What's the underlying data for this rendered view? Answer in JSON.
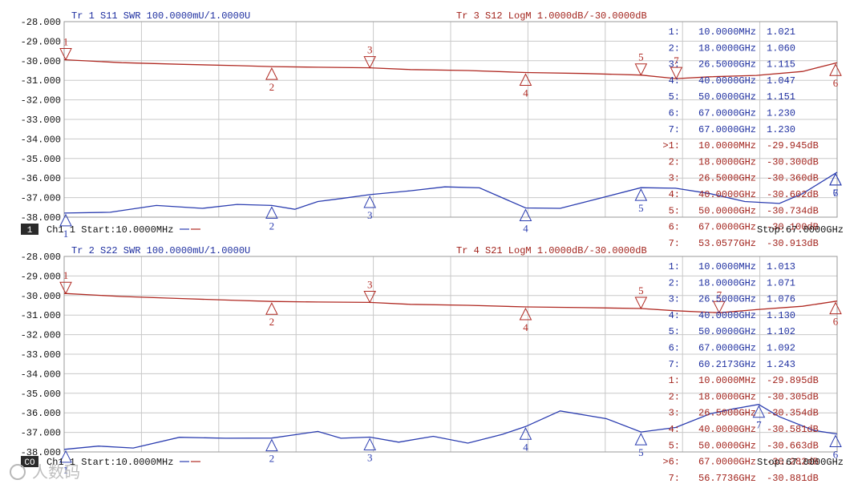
{
  "colors": {
    "trace_blue": "#2b3db0",
    "trace_red": "#b02a23",
    "grid": "#c8c8c8",
    "text_blue": "#1e2fa0",
    "text_red": "#a2231c"
  },
  "panels": [
    {
      "y_tick_labels": [
        "-28.000",
        "-29.000",
        "-30.000",
        "-31.000",
        "-32.000",
        "-33.000",
        "-34.000",
        "-35.000",
        "-36.000",
        "-37.000",
        "-38.000"
      ],
      "left_title": "Tr 1  S11 SWR 100.0000mU/1.0000U",
      "right_title": "Tr 3  S12 LogM 1.0000dB/-30.0000dB",
      "footer_badge": "1",
      "footer_left": "Ch1 1 Start:10.0000MHz",
      "footer_right": "Stop:67.0000GHz",
      "marker_table": [
        {
          "id": "1:",
          "freq": "10.0000MHz",
          "val": "1.021"
        },
        {
          "id": "2:",
          "freq": "18.0000GHz",
          "val": "1.060"
        },
        {
          "id": "3:",
          "freq": "26.5000GHz",
          "val": "1.115"
        },
        {
          "id": "4:",
          "freq": "40.0000GHz",
          "val": "1.047"
        },
        {
          "id": "5:",
          "freq": "50.0000GHz",
          "val": "1.151"
        },
        {
          "id": "6:",
          "freq": "67.0000GHz",
          "val": "1.230"
        },
        {
          "id": "7:",
          "freq": "67.0000GHz",
          "val": "1.230"
        },
        {
          "id": ">1:",
          "freq": "10.0000MHz",
          "val": "-29.945dB"
        },
        {
          "id": "2:",
          "freq": "18.0000GHz",
          "val": "-30.300dB"
        },
        {
          "id": "3:",
          "freq": "26.5000GHz",
          "val": "-30.360dB"
        },
        {
          "id": "4:",
          "freq": "40.0000GHz",
          "val": "-30.602dB"
        },
        {
          "id": "5:",
          "freq": "50.0000GHz",
          "val": "-30.734dB"
        },
        {
          "id": "6:",
          "freq": "67.0000GHz",
          "val": "-30.100dB"
        },
        {
          "id": "7:",
          "freq": "53.0577GHz",
          "val": "-30.913dB"
        }
      ]
    },
    {
      "y_tick_labels": [
        "-28.000",
        "-29.000",
        "-30.000",
        "-31.000",
        "-32.000",
        "-33.000",
        "-34.000",
        "-35.000",
        "-36.000",
        "-37.000",
        "-38.000"
      ],
      "left_title": "Tr 2  S22 SWR 100.0000mU/1.0000U",
      "right_title": "Tr 4  S21 LogM 1.0000dB/-30.0000dB",
      "footer_badge": "CO",
      "footer_left": "Ch1 1 Start:10.0000MHz",
      "footer_right": "Stop:67.0000GHz",
      "marker_table": [
        {
          "id": "1:",
          "freq": "10.0000MHz",
          "val": "1.013"
        },
        {
          "id": "2:",
          "freq": "18.0000GHz",
          "val": "1.071"
        },
        {
          "id": "3:",
          "freq": "26.5000GHz",
          "val": "1.076"
        },
        {
          "id": "4:",
          "freq": "40.0000GHz",
          "val": "1.130"
        },
        {
          "id": "5:",
          "freq": "50.0000GHz",
          "val": "1.102"
        },
        {
          "id": "6:",
          "freq": "67.0000GHz",
          "val": "1.092"
        },
        {
          "id": "7:",
          "freq": "60.2173GHz",
          "val": "1.243"
        },
        {
          "id": "1:",
          "freq": "10.0000MHz",
          "val": "-29.895dB"
        },
        {
          "id": "2:",
          "freq": "18.0000GHz",
          "val": "-30.305dB"
        },
        {
          "id": "3:",
          "freq": "26.5000GHz",
          "val": "-30.354dB"
        },
        {
          "id": "4:",
          "freq": "40.0000GHz",
          "val": "-30.581dB"
        },
        {
          "id": "5:",
          "freq": "50.0000GHz",
          "val": "-30.663dB"
        },
        {
          "id": ">6:",
          "freq": "67.0000GHz",
          "val": "-30.282dB"
        },
        {
          "id": "7:",
          "freq": "56.7736GHz",
          "val": "-30.881dB"
        }
      ]
    }
  ],
  "watermark_text": "人数码",
  "chart_data": [
    {
      "type": "line",
      "x_unit": "GHz",
      "xlim": [
        0.01,
        67
      ],
      "ylim": [
        -38,
        -28
      ],
      "grid": true,
      "series": [
        {
          "name": "Tr 1  S11 SWR 100.0000mU/1.0000U",
          "color": "#2b3db0",
          "mapping": "swr",
          "x": [
            0.01,
            4,
            8,
            12,
            15,
            18,
            20,
            22,
            24,
            26.5,
            30,
            33,
            36,
            40,
            43,
            46,
            50,
            53,
            56,
            59,
            62,
            64,
            67
          ],
          "y": [
            1.021,
            1.025,
            1.06,
            1.045,
            1.065,
            1.06,
            1.04,
            1.08,
            1.095,
            1.115,
            1.135,
            1.155,
            1.15,
            1.047,
            1.045,
            1.09,
            1.151,
            1.148,
            1.12,
            1.08,
            1.07,
            1.12,
            1.23
          ]
        },
        {
          "name": "Tr 3  S12 LogM 1.0000dB/-30.0000dB",
          "color": "#b02a23",
          "mapping": "db",
          "x": [
            0.01,
            5,
            10,
            15,
            18,
            22,
            26.5,
            30,
            35,
            40,
            45,
            50,
            53.06,
            56,
            60,
            64,
            67
          ],
          "y": [
            -29.945,
            -30.1,
            -30.18,
            -30.25,
            -30.3,
            -30.33,
            -30.36,
            -30.45,
            -30.5,
            -30.602,
            -30.65,
            -30.734,
            -30.913,
            -30.82,
            -30.75,
            -30.55,
            -30.1
          ]
        }
      ],
      "markers": [
        {
          "trace": 0,
          "ids": [
            "1",
            "2",
            "3",
            "4",
            "5",
            "6",
            "7"
          ],
          "x": [
            0.01,
            18,
            26.5,
            40,
            50,
            67,
            67
          ],
          "y": [
            1.021,
            1.06,
            1.115,
            1.047,
            1.151,
            1.23,
            1.23
          ]
        },
        {
          "trace": 1,
          "ids": [
            "1",
            "2",
            "3",
            "4",
            "5",
            "6",
            "7"
          ],
          "x": [
            0.01,
            18,
            26.5,
            40,
            50,
            67,
            53.0577
          ],
          "y": [
            -29.945,
            -30.3,
            -30.36,
            -30.602,
            -30.734,
            -30.1,
            -30.913
          ]
        }
      ]
    },
    {
      "type": "line",
      "x_unit": "GHz",
      "xlim": [
        0.01,
        67
      ],
      "ylim": [
        -38,
        -28
      ],
      "grid": true,
      "series": [
        {
          "name": "Tr 2  S22 SWR 100.0000mU/1.0000U",
          "color": "#2b3db0",
          "mapping": "swr",
          "x": [
            0.01,
            3,
            6,
            10,
            14,
            18,
            22,
            24,
            26.5,
            29,
            32,
            35,
            38,
            40,
            43,
            47,
            50,
            53,
            56,
            58,
            60.2,
            62,
            65,
            67
          ],
          "y": [
            1.013,
            1.03,
            1.02,
            1.075,
            1.07,
            1.071,
            1.105,
            1.07,
            1.076,
            1.05,
            1.08,
            1.045,
            1.09,
            1.13,
            1.21,
            1.17,
            1.102,
            1.125,
            1.195,
            1.22,
            1.243,
            1.18,
            1.11,
            1.092
          ]
        },
        {
          "name": "Tr 4  S21 LogM 1.0000dB/-30.0000dB",
          "color": "#b02a23",
          "mapping": "db",
          "x": [
            0.01,
            5,
            10,
            15,
            18,
            22,
            26.5,
            30,
            35,
            40,
            45,
            50,
            53,
            56.77,
            60,
            64,
            67
          ],
          "y": [
            -29.895,
            -30.05,
            -30.15,
            -30.25,
            -30.305,
            -30.33,
            -30.354,
            -30.45,
            -30.5,
            -30.581,
            -30.62,
            -30.663,
            -30.78,
            -30.881,
            -30.72,
            -30.55,
            -30.282
          ]
        }
      ],
      "markers": [
        {
          "trace": 0,
          "ids": [
            "1",
            "2",
            "3",
            "4",
            "5",
            "6",
            "7"
          ],
          "x": [
            0.01,
            18,
            26.5,
            40,
            50,
            67,
            60.2173
          ],
          "y": [
            1.013,
            1.071,
            1.076,
            1.13,
            1.102,
            1.092,
            1.243
          ]
        },
        {
          "trace": 1,
          "ids": [
            "1",
            "2",
            "3",
            "4",
            "5",
            "6",
            "7"
          ],
          "x": [
            0.01,
            18,
            26.5,
            40,
            50,
            67,
            56.7736
          ],
          "y": [
            -29.895,
            -30.305,
            -30.354,
            -30.581,
            -30.663,
            -30.282,
            -30.881
          ]
        }
      ]
    }
  ]
}
